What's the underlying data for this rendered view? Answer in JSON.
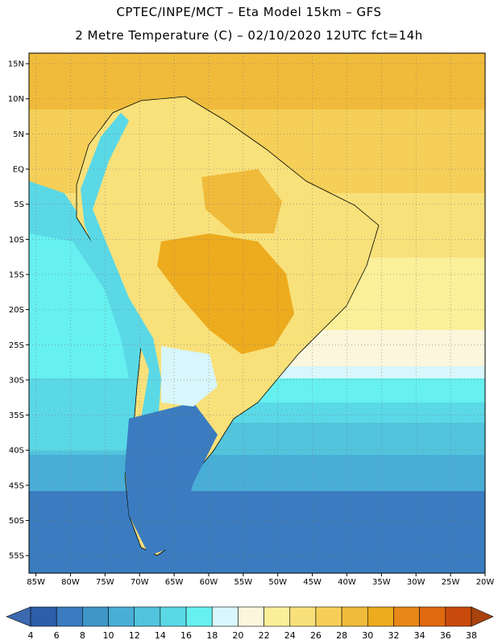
{
  "header": {
    "line1": "CPTEC/INPE/MCT –  Eta Model 15km – GFS",
    "line2": "2 Metre Temperature (C) – 02/10/2020 12UTC fct=14h"
  },
  "map": {
    "lon_range": [
      -86,
      -20
    ],
    "lat_range": [
      -57.5,
      16.5
    ],
    "lat_ticks": [
      {
        "value": 15,
        "label": "15N"
      },
      {
        "value": 10,
        "label": "10N"
      },
      {
        "value": 5,
        "label": "5N"
      },
      {
        "value": 0,
        "label": "EQ"
      },
      {
        "value": -5,
        "label": "5S"
      },
      {
        "value": -10,
        "label": "10S"
      },
      {
        "value": -15,
        "label": "15S"
      },
      {
        "value": -20,
        "label": "20S"
      },
      {
        "value": -25,
        "label": "25S"
      },
      {
        "value": -30,
        "label": "30S"
      },
      {
        "value": -35,
        "label": "35S"
      },
      {
        "value": -40,
        "label": "40S"
      },
      {
        "value": -45,
        "label": "45S"
      },
      {
        "value": -50,
        "label": "50S"
      },
      {
        "value": -55,
        "label": "55S"
      }
    ],
    "lon_ticks": [
      {
        "value": -85,
        "label": "85W"
      },
      {
        "value": -80,
        "label": "80W"
      },
      {
        "value": -75,
        "label": "75W"
      },
      {
        "value": -70,
        "label": "70W"
      },
      {
        "value": -65,
        "label": "65W"
      },
      {
        "value": -60,
        "label": "60W"
      },
      {
        "value": -55,
        "label": "55W"
      },
      {
        "value": -50,
        "label": "50W"
      },
      {
        "value": -45,
        "label": "45W"
      },
      {
        "value": -40,
        "label": "40W"
      },
      {
        "value": -35,
        "label": "35W"
      },
      {
        "value": -30,
        "label": "30W"
      },
      {
        "value": -25,
        "label": "25W"
      },
      {
        "value": -20,
        "label": "20W"
      }
    ]
  },
  "colorbar": {
    "labels": [
      "4",
      "6",
      "8",
      "10",
      "12",
      "14",
      "16",
      "18",
      "20",
      "22",
      "24",
      "26",
      "28",
      "30",
      "32",
      "34",
      "36",
      "38"
    ],
    "colors": [
      "#2c5fa8",
      "#3a7cbf",
      "#3f97c8",
      "#49aed6",
      "#52c4dd",
      "#5ad8e6",
      "#66f0f0",
      "#d8f6fb",
      "#fbf6dc",
      "#fbef9a",
      "#f8e17a",
      "#f5cf58",
      "#f0bb3a",
      "#edab1e",
      "#e88818",
      "#e06a10",
      "#c94a0a"
    ],
    "low_color": "#3c6ab0",
    "high_color": "#a8420e"
  }
}
